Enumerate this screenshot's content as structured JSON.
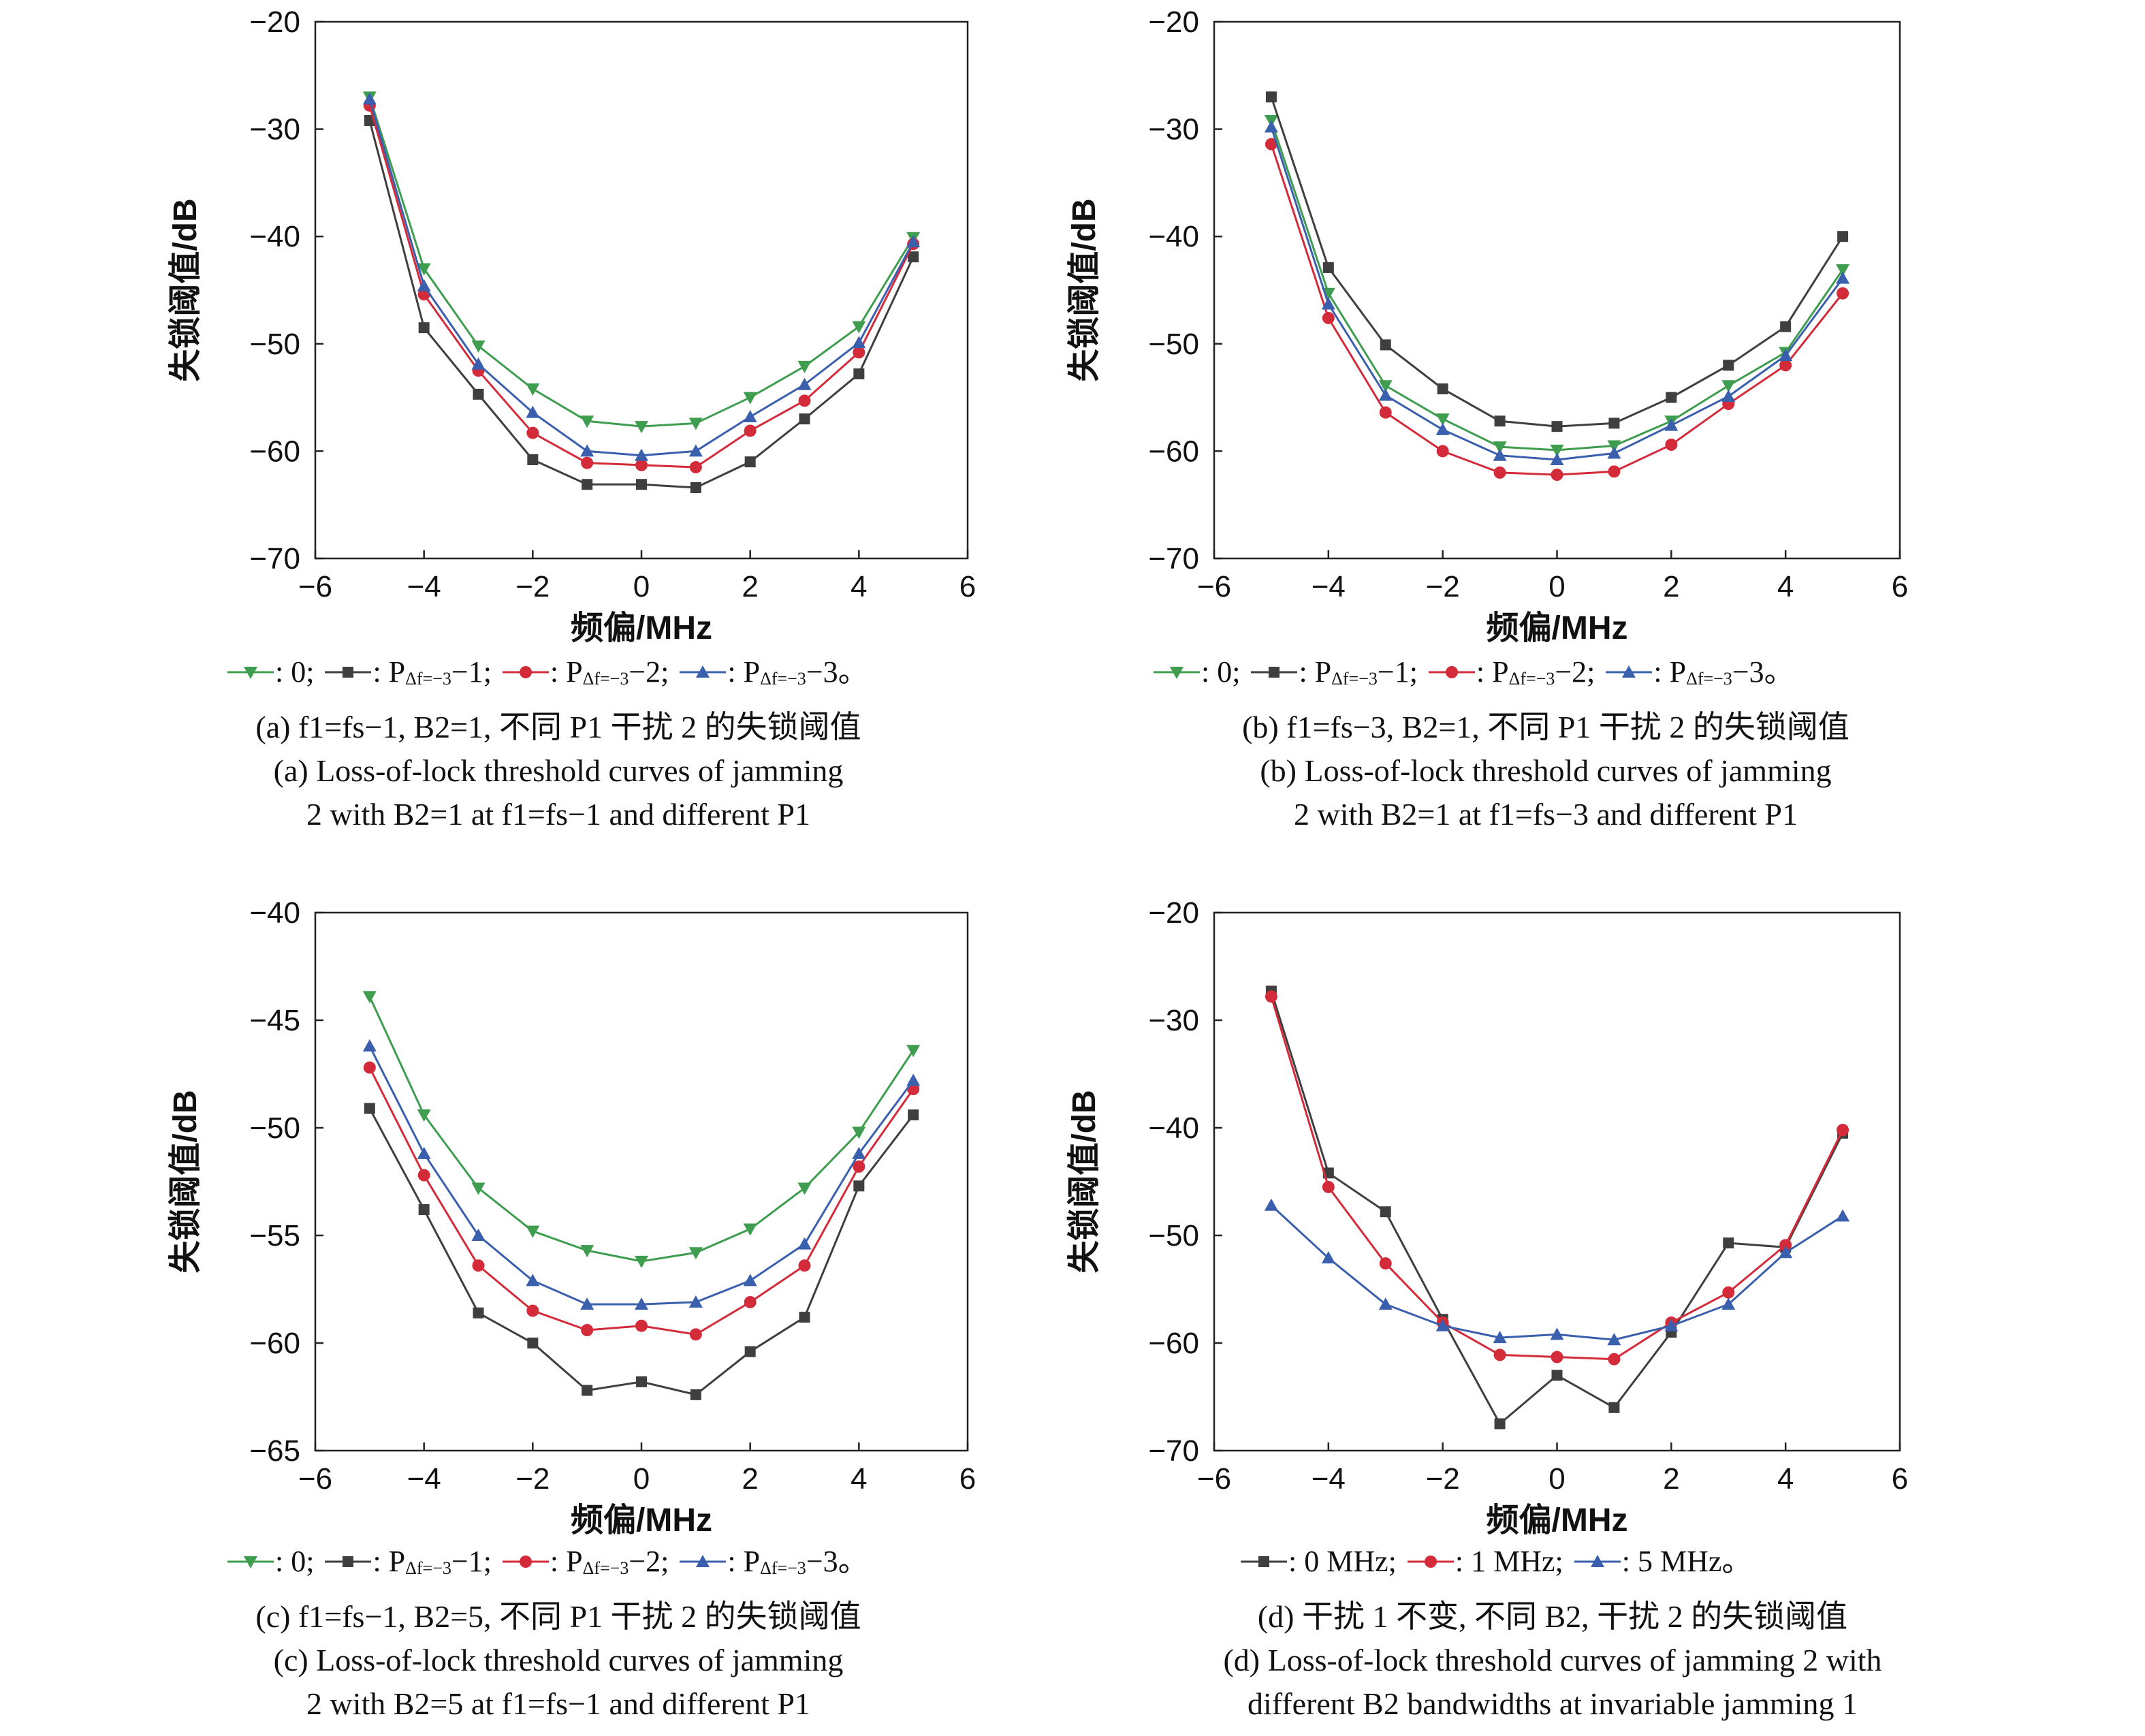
{
  "colors": {
    "green": "#3e9d4e",
    "black": "#3f3f3f",
    "red": "#d42b3b",
    "blue": "#3a5fad"
  },
  "panels": [
    {
      "legend": [
        {
          "marker": "triangle-down",
          "color": "green",
          "text": ": 0;"
        },
        {
          "marker": "square",
          "color": "black",
          "text": ": P",
          "sub": "Δf=−3",
          "text2": "−1;"
        },
        {
          "marker": "circle",
          "color": "red",
          "text": ": P",
          "sub": "Δf=−3",
          "text2": "−2;"
        },
        {
          "marker": "triangle-up",
          "color": "blue",
          "text": ": P",
          "sub": "Δf=−3",
          "text2": "−3。"
        }
      ],
      "caption_cn": "(a) f1=fs−1, B2=1, 不同 P1 干扰 2 的失锁阈值",
      "caption_en_1": "(a) Loss-of-lock threshold curves of jamming",
      "caption_en_2": "2 with B2=1 at f1=fs−1 and different P1"
    },
    {
      "legend": [
        {
          "marker": "triangle-down",
          "color": "green",
          "text": ": 0;"
        },
        {
          "marker": "square",
          "color": "black",
          "text": ": P",
          "sub": "Δf=−3",
          "text2": "−1;"
        },
        {
          "marker": "circle",
          "color": "red",
          "text": ": P",
          "sub": "Δf=−3",
          "text2": "−2;"
        },
        {
          "marker": "triangle-up",
          "color": "blue",
          "text": ": P",
          "sub": "Δf=−3",
          "text2": "−3。"
        }
      ],
      "caption_cn": "(b) f1=fs−3, B2=1, 不同 P1 干扰 2 的失锁阈值",
      "caption_en_1": "(b) Loss-of-lock threshold curves of jamming",
      "caption_en_2": "2 with B2=1 at f1=fs−3 and different P1"
    },
    {
      "legend": [
        {
          "marker": "triangle-down",
          "color": "green",
          "text": ": 0;"
        },
        {
          "marker": "square",
          "color": "black",
          "text": ": P",
          "sub": "Δf=−3",
          "text2": "−1;"
        },
        {
          "marker": "circle",
          "color": "red",
          "text": ": P",
          "sub": "Δf=−3",
          "text2": "−2;"
        },
        {
          "marker": "triangle-up",
          "color": "blue",
          "text": ": P",
          "sub": "Δf=−3",
          "text2": "−3。"
        }
      ],
      "caption_cn": "(c) f1=fs−1, B2=5, 不同 P1 干扰 2 的失锁阈值",
      "caption_en_1": "(c) Loss-of-lock threshold curves of jamming",
      "caption_en_2": "2 with B2=5 at f1=fs−1 and different P1"
    },
    {
      "legend": [
        {
          "marker": "square",
          "color": "black",
          "text": ": 0 MHz;"
        },
        {
          "marker": "circle",
          "color": "red",
          "text": ": 1 MHz;"
        },
        {
          "marker": "triangle-up",
          "color": "blue",
          "text": ": 5 MHz。"
        }
      ],
      "caption_cn": "(d) 干扰 1 不变, 不同 B2, 干扰 2 的失锁阈值",
      "caption_en_1": "(d) Loss-of-lock threshold curves of jamming 2 with",
      "caption_en_2": "different B2 bandwidths at invariable jamming 1"
    }
  ],
  "chart_data": [
    {
      "type": "line",
      "xlabel": "频偏/MHz",
      "ylabel": "失锁阈值/dB",
      "xlim": [
        -6,
        6
      ],
      "ylim": [
        -70,
        -20
      ],
      "xticks": [
        "−6",
        "−4",
        "−2",
        "0",
        "2",
        "4",
        "6"
      ],
      "yticks": [
        "−70",
        "−60",
        "−50",
        "−40",
        "−30",
        "−20"
      ],
      "x": [
        -5,
        -4,
        -3,
        -2,
        -1,
        0,
        1,
        2,
        3,
        4,
        5
      ],
      "series": [
        {
          "color": "green",
          "marker": "triangle-down",
          "values": [
            -27,
            -43,
            -50.2,
            -54.2,
            -57.2,
            -57.7,
            -57.4,
            -55,
            -52.1,
            -48.4,
            -40.1
          ]
        },
        {
          "color": "black",
          "marker": "square",
          "values": [
            -29.2,
            -48.5,
            -54.7,
            -60.8,
            -63.1,
            -63.1,
            -63.4,
            -61,
            -57,
            -52.8,
            -41.9
          ]
        },
        {
          "color": "red",
          "marker": "circle",
          "values": [
            -27.8,
            -45.4,
            -52.5,
            -58.3,
            -61.1,
            -61.3,
            -61.5,
            -58.1,
            -55.3,
            -50.8,
            -40.7
          ]
        },
        {
          "color": "blue",
          "marker": "triangle-up",
          "values": [
            -27.2,
            -44.6,
            -51.9,
            -56.4,
            -60,
            -60.4,
            -60,
            -56.8,
            -53.8,
            -49.9,
            -40.5
          ]
        }
      ]
    },
    {
      "type": "line",
      "xlabel": "频偏/MHz",
      "ylabel": "失锁阈值/dB",
      "xlim": [
        -6,
        6
      ],
      "ylim": [
        -70,
        -20
      ],
      "xticks": [
        "−6",
        "−4",
        "−2",
        "0",
        "2",
        "4",
        "6"
      ],
      "yticks": [
        "−70",
        "−60",
        "−50",
        "−40",
        "−30",
        "−20"
      ],
      "x": [
        -5,
        -4,
        -3,
        -2,
        -1,
        0,
        1,
        2,
        3,
        4,
        5
      ],
      "series": [
        {
          "color": "green",
          "marker": "triangle-down",
          "values": [
            -29.2,
            -45.3,
            -53.9,
            -57,
            -59.6,
            -59.9,
            -59.5,
            -57.2,
            -53.9,
            -50.8,
            -43.1
          ]
        },
        {
          "color": "black",
          "marker": "square",
          "values": [
            -27,
            -42.9,
            -50.1,
            -54.2,
            -57.2,
            -57.7,
            -57.4,
            -55,
            -52,
            -48.4,
            -40
          ]
        },
        {
          "color": "red",
          "marker": "circle",
          "values": [
            -31.4,
            -47.6,
            -56.4,
            -60,
            -62,
            -62.2,
            -61.9,
            -59.4,
            -55.6,
            -52,
            -45.3
          ]
        },
        {
          "color": "blue",
          "marker": "triangle-up",
          "values": [
            -29.8,
            -46.3,
            -54.8,
            -58,
            -60.4,
            -60.8,
            -60.2,
            -57.6,
            -54.9,
            -51.1,
            -43.9
          ]
        }
      ]
    },
    {
      "type": "line",
      "xlabel": "频偏/MHz",
      "ylabel": "失锁阈值/dB",
      "xlim": [
        -6,
        6
      ],
      "ylim": [
        -65,
        -40
      ],
      "xticks": [
        "−6",
        "−4",
        "−2",
        "0",
        "2",
        "4",
        "6"
      ],
      "yticks": [
        "−65",
        "−60",
        "−55",
        "−50",
        "−45",
        "−40"
      ],
      "x": [
        -5,
        -4,
        -3,
        -2,
        -1,
        0,
        1,
        2,
        3,
        4,
        5
      ],
      "series": [
        {
          "color": "green",
          "marker": "triangle-down",
          "values": [
            -43.9,
            -49.4,
            -52.8,
            -54.8,
            -55.7,
            -56.2,
            -55.8,
            -54.7,
            -52.8,
            -50.2,
            -46.4
          ]
        },
        {
          "color": "black",
          "marker": "square",
          "values": [
            -49.1,
            -53.8,
            -58.6,
            -60,
            -62.2,
            -61.8,
            -62.4,
            -60.4,
            -58.8,
            -52.7,
            -49.4
          ]
        },
        {
          "color": "red",
          "marker": "circle",
          "values": [
            -47.2,
            -52.2,
            -56.4,
            -58.5,
            -59.4,
            -59.2,
            -59.6,
            -58.1,
            -56.4,
            -51.8,
            -48.2
          ]
        },
        {
          "color": "blue",
          "marker": "triangle-up",
          "values": [
            -46.2,
            -51.2,
            -55,
            -57.1,
            -58.2,
            -58.2,
            -58.1,
            -57.1,
            -55.4,
            -51.2,
            -47.8
          ]
        }
      ]
    },
    {
      "type": "line",
      "xlabel": "频偏/MHz",
      "ylabel": "失锁阈值/dB",
      "xlim": [
        -6,
        6
      ],
      "ylim": [
        -70,
        -20
      ],
      "xticks": [
        "−6",
        "−4",
        "−2",
        "0",
        "2",
        "4",
        "6"
      ],
      "yticks": [
        "−70",
        "−60",
        "−50",
        "−40",
        "−30",
        "−20"
      ],
      "x": [
        -5,
        -4,
        -3,
        -2,
        -1,
        0,
        1,
        2,
        3,
        4,
        5
      ],
      "series": [
        {
          "color": "black",
          "marker": "square",
          "values": [
            -27.3,
            -44.2,
            -47.8,
            -57.8,
            -67.5,
            -63,
            -66,
            -59,
            -50.7,
            -51.1,
            -40.5
          ]
        },
        {
          "color": "red",
          "marker": "circle",
          "values": [
            -27.8,
            -45.5,
            -52.6,
            -58.1,
            -61.1,
            -61.3,
            -61.5,
            -58.1,
            -55.3,
            -50.9,
            -40.2
          ]
        },
        {
          "color": "blue",
          "marker": "triangle-up",
          "values": [
            -47.2,
            -52.1,
            -56.4,
            -58.4,
            -59.5,
            -59.2,
            -59.7,
            -58.4,
            -56.4,
            -51.6,
            -48.2
          ]
        }
      ]
    }
  ]
}
